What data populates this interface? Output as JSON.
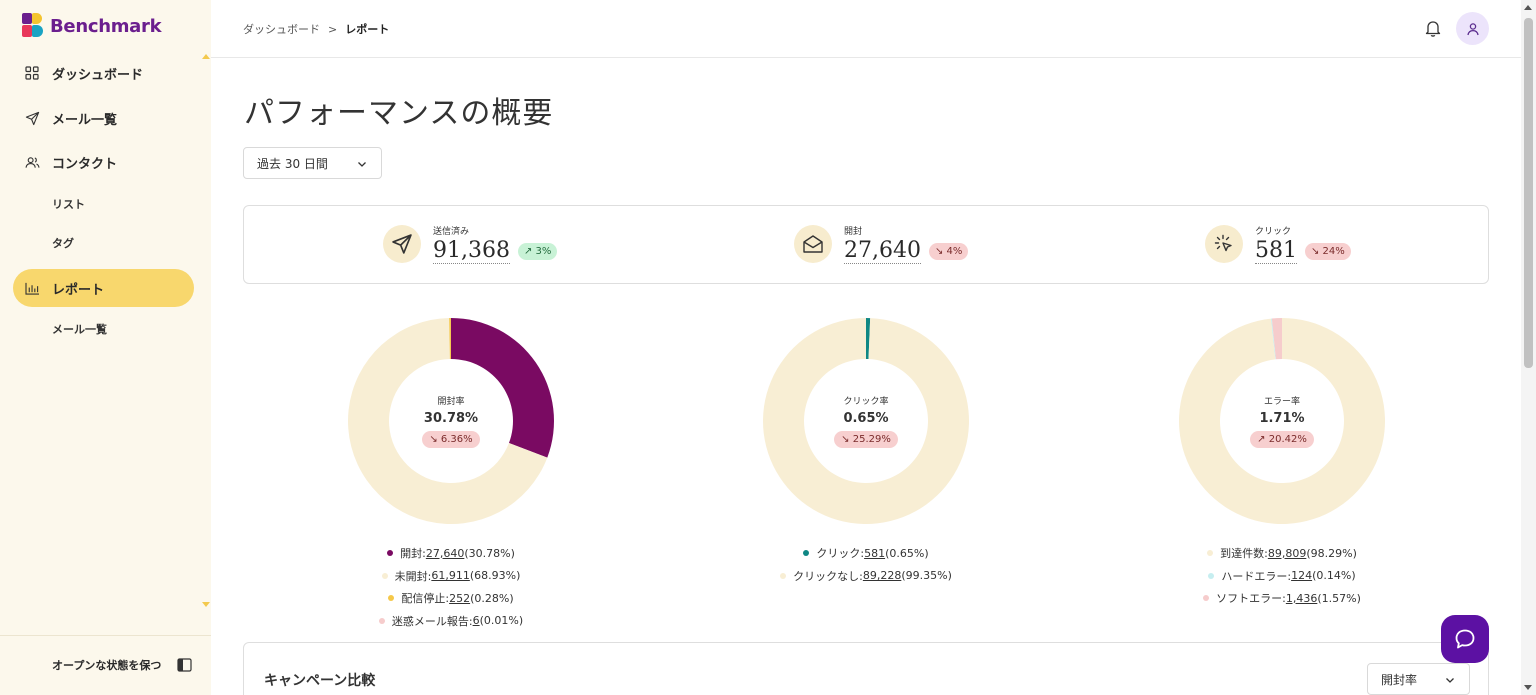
{
  "app": {
    "logo_text": "Benchmark"
  },
  "sidebar": {
    "items": [
      {
        "label": "ダッシュボード",
        "icon": "dashboard-grid-icon"
      },
      {
        "label": "メール一覧",
        "icon": "send-icon"
      },
      {
        "label": "コンタクト",
        "icon": "contacts-icon"
      },
      {
        "label": "レポート",
        "icon": "bar-chart-icon",
        "active": true
      }
    ],
    "subitems": {
      "list": "リスト",
      "tags": "タグ",
      "email_list": "メール一覧"
    },
    "footer": {
      "keep_open": "オープンな状態を保つ"
    }
  },
  "header": {
    "breadcrumb": {
      "root": "ダッシュボード",
      "separator": ">",
      "current": "レポート"
    }
  },
  "main": {
    "title": "パフォーマンスの概要",
    "period": "過去 30 日間",
    "stats": [
      {
        "label": "送信済み",
        "value": "91,368",
        "change": "↗ 3%",
        "direction": "up",
        "icon": "send-icon"
      },
      {
        "label": "開封",
        "value": "27,640",
        "change": "↘ 4%",
        "direction": "down",
        "icon": "envelope-icon"
      },
      {
        "label": "クリック",
        "value": "581",
        "change": "↘ 24%",
        "direction": "down",
        "icon": "click-icon"
      }
    ],
    "donuts": [
      {
        "center_label": "開封率",
        "center_value": "30.78%",
        "change": "↘ 6.36%",
        "legend": [
          {
            "label": "開封: ",
            "count": "27,640",
            "pct": " (30.78%)"
          },
          {
            "label": "未開封: ",
            "count": "61,911",
            "pct": " (68.93%)"
          },
          {
            "label": "配信停止: ",
            "count": "252",
            "pct": " (0.28%)"
          },
          {
            "label": "迷惑メール報告: ",
            "count": "6",
            "pct": " (0.01%)"
          }
        ]
      },
      {
        "center_label": "クリック率",
        "center_value": "0.65%",
        "change": "↘ 25.29%",
        "legend": [
          {
            "label": "クリック: ",
            "count": "581",
            "pct": " (0.65%)"
          },
          {
            "label": "クリックなし: ",
            "count": "89,228",
            "pct": " (99.35%)"
          }
        ]
      },
      {
        "center_label": "エラー率",
        "center_value": "1.71%",
        "change": "↗ 20.42%",
        "legend": [
          {
            "label": "到達件数: ",
            "count": "89,809",
            "pct": " (98.29%)"
          },
          {
            "label": "ハードエラー: ",
            "count": "124",
            "pct": " (0.14%)"
          },
          {
            "label": "ソフトエラー: ",
            "count": "1,436",
            "pct": " (1.57%)"
          }
        ]
      }
    ],
    "compare": {
      "title": "キャンペーン比較",
      "metric": "開封率"
    }
  },
  "chart_data": [
    {
      "type": "pie",
      "title": "開封率",
      "categories": [
        "開封",
        "未開封",
        "配信停止",
        "迷惑メール報告"
      ],
      "values": [
        27640,
        61911,
        252,
        6
      ],
      "percent": [
        30.78,
        68.93,
        0.28,
        0.01
      ],
      "colors": [
        "#7a0a62",
        "#f8eed4",
        "#f5c84a",
        "#f6cccc"
      ]
    },
    {
      "type": "pie",
      "title": "クリック率",
      "categories": [
        "クリック",
        "クリックなし"
      ],
      "values": [
        581,
        89228
      ],
      "percent": [
        0.65,
        99.35
      ],
      "colors": [
        "#0f8784",
        "#f8eed4"
      ]
    },
    {
      "type": "pie",
      "title": "エラー率",
      "categories": [
        "到達件数",
        "ハードエラー",
        "ソフトエラー"
      ],
      "values": [
        89809,
        124,
        1436
      ],
      "percent": [
        98.29,
        0.14,
        1.57
      ],
      "colors": [
        "#f8eed4",
        "#c6eef0",
        "#f6cccc"
      ]
    }
  ],
  "colors": {
    "sidebar_bg": "#fcf8ec",
    "active_nav": "#f8d76d",
    "brand_purple": "#5c11a3",
    "badge_up_bg": "#c8f2d6",
    "badge_down_bg": "#f7cfcf"
  }
}
